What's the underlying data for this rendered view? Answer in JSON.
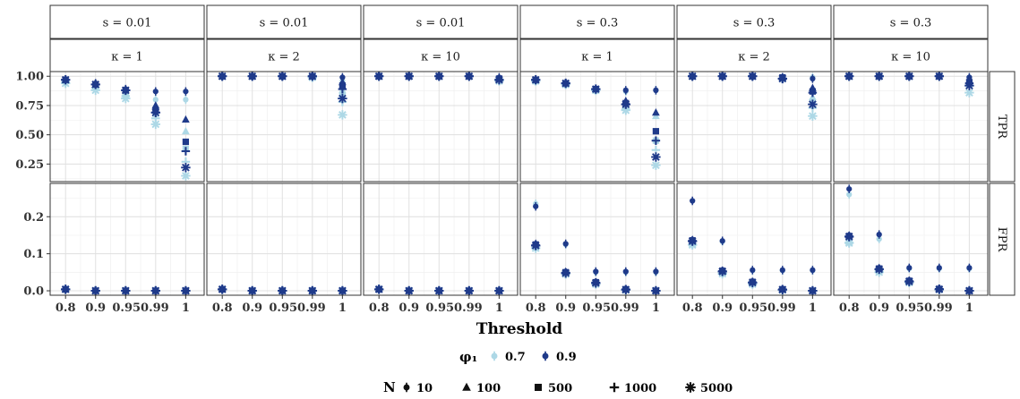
{
  "chart_data": {
    "type": "scatter",
    "xlabel": "Threshold",
    "x_categories": [
      "0.8",
      "0.9",
      "0.95",
      "0.99",
      "1"
    ],
    "x_tick_labels": [
      "0.8",
      "0.9",
      "0.950.99",
      "",
      "1"
    ],
    "colors": {
      "0.7": "#add8e6",
      "0.9": "#1f3a8a"
    },
    "col_strips": [
      {
        "s": "s = 0.01",
        "kappa": "κ = 1"
      },
      {
        "s": "s = 0.01",
        "kappa": "κ = 2"
      },
      {
        "s": "s = 0.01",
        "kappa": "κ = 10"
      },
      {
        "s": "s = 0.3",
        "kappa": "κ = 1"
      },
      {
        "s": "s = 0.3",
        "kappa": "κ = 2"
      },
      {
        "s": "s = 0.3",
        "kappa": "κ = 10"
      }
    ],
    "rows": [
      {
        "name": "TPR",
        "ylim": [
          0.1,
          1.04
        ],
        "yticks": [
          0.25,
          0.5,
          0.75,
          1.0
        ],
        "ytick_labels": [
          "0.25",
          "0.50",
          "0.75",
          "1.00"
        ]
      },
      {
        "name": "FPR",
        "ylim": [
          -0.012,
          0.29
        ],
        "yticks": [
          0.0,
          0.1,
          0.2
        ],
        "ytick_labels": [
          "0.0",
          "0.1",
          "0.2"
        ]
      }
    ],
    "legend_phi": {
      "title": "φ₁",
      "items": [
        "0.7",
        "0.9"
      ]
    },
    "legend_N": {
      "title": "N",
      "items": [
        "10",
        "100",
        "500",
        "1000",
        "5000"
      ]
    },
    "panels": [
      {
        "TPR": {
          "0.7": {
            "10": [
              0.97,
              0.93,
              0.88,
              0.8,
              0.8
            ],
            "100": [
              0.96,
              0.92,
              0.86,
              0.75,
              0.53
            ],
            "500": [
              0.96,
              0.91,
              0.84,
              0.68,
              0.38
            ],
            "1000": [
              0.95,
              0.9,
              0.83,
              0.64,
              0.27
            ],
            "5000": [
              0.94,
              0.88,
              0.81,
              0.59,
              0.15
            ]
          },
          "0.9": {
            "10": [
              0.97,
              0.94,
              0.89,
              0.87,
              0.87
            ],
            "100": [
              0.97,
              0.93,
              0.88,
              0.75,
              0.63
            ],
            "500": [
              0.97,
              0.93,
              0.88,
              0.71,
              0.44
            ],
            "1000": [
              0.97,
              0.93,
              0.88,
              0.69,
              0.36
            ],
            "5000": [
              0.97,
              0.93,
              0.88,
              0.69,
              0.22
            ]
          }
        },
        "FPR": {
          "0.7": {
            "10": [
              0.005,
              0,
              0,
              0,
              0
            ],
            "100": [
              0.005,
              0,
              0,
              0,
              0
            ],
            "500": [
              0.004,
              0,
              0,
              0,
              0
            ],
            "1000": [
              0.004,
              0,
              0,
              0,
              0
            ],
            "5000": [
              0.004,
              0,
              0,
              0,
              0
            ]
          },
          "0.9": {
            "10": [
              0.005,
              0,
              0,
              0,
              0
            ],
            "100": [
              0.005,
              0,
              0,
              0,
              0
            ],
            "500": [
              0.004,
              0,
              0,
              0,
              0
            ],
            "1000": [
              0.004,
              0,
              0,
              0,
              0
            ],
            "5000": [
              0.004,
              0,
              0,
              0,
              0
            ]
          }
        }
      },
      {
        "TPR": {
          "0.7": {
            "10": [
              1,
              1,
              1,
              1,
              0.96
            ],
            "100": [
              1,
              1,
              1,
              1,
              0.88
            ],
            "500": [
              1,
              1,
              1,
              1,
              0.84
            ],
            "1000": [
              1,
              1,
              1,
              0.99,
              0.78
            ],
            "5000": [
              1,
              1,
              1,
              0.99,
              0.67
            ]
          },
          "0.9": {
            "10": [
              1,
              1,
              1,
              1,
              0.99
            ],
            "100": [
              1,
              1,
              1,
              1,
              0.95
            ],
            "500": [
              1,
              1,
              1,
              1,
              0.92
            ],
            "1000": [
              1,
              1,
              1,
              1,
              0.89
            ],
            "5000": [
              1,
              1,
              1,
              1,
              0.81
            ]
          }
        },
        "FPR": {
          "0.7": {
            "10": [
              0.005,
              0,
              0,
              0,
              0
            ],
            "100": [
              0.005,
              0,
              0,
              0,
              0
            ],
            "500": [
              0.004,
              0,
              0,
              0,
              0
            ],
            "1000": [
              0.004,
              0,
              0,
              0,
              0
            ],
            "5000": [
              0.004,
              0,
              0,
              0,
              0
            ]
          },
          "0.9": {
            "10": [
              0.005,
              0,
              0,
              0,
              0
            ],
            "100": [
              0.005,
              0,
              0,
              0,
              0
            ],
            "500": [
              0.004,
              0,
              0,
              0,
              0
            ],
            "1000": [
              0.004,
              0,
              0,
              0,
              0
            ],
            "5000": [
              0.004,
              0,
              0,
              0,
              0
            ]
          }
        }
      },
      {
        "TPR": {
          "0.7": {
            "10": [
              1,
              1,
              1,
              1,
              0.98
            ],
            "100": [
              1,
              1,
              1,
              1,
              0.98
            ],
            "500": [
              1,
              1,
              1,
              1,
              0.97
            ],
            "1000": [
              1,
              1,
              1,
              1,
              0.97
            ],
            "5000": [
              1,
              1,
              1,
              1,
              0.96
            ]
          },
          "0.9": {
            "10": [
              1,
              1,
              1,
              1,
              0.99
            ],
            "100": [
              1,
              1,
              1,
              1,
              0.98
            ],
            "500": [
              1,
              1,
              1,
              1,
              0.98
            ],
            "1000": [
              1,
              1,
              1,
              1,
              0.97
            ],
            "5000": [
              1,
              1,
              1,
              1,
              0.97
            ]
          }
        },
        "FPR": {
          "0.7": {
            "10": [
              0.005,
              0,
              0,
              0,
              0
            ],
            "100": [
              0.005,
              0,
              0,
              0,
              0
            ],
            "500": [
              0.004,
              0,
              0,
              0,
              0
            ],
            "1000": [
              0.004,
              0,
              0,
              0,
              0
            ],
            "5000": [
              0.004,
              0,
              0,
              0,
              0
            ]
          },
          "0.9": {
            "10": [
              0.005,
              0,
              0,
              0,
              0
            ],
            "100": [
              0.005,
              0,
              0,
              0,
              0
            ],
            "500": [
              0.004,
              0,
              0,
              0,
              0
            ],
            "1000": [
              0.004,
              0,
              0,
              0,
              0
            ],
            "5000": [
              0.004,
              0,
              0,
              0,
              0
            ]
          }
        }
      },
      {
        "TPR": {
          "0.7": {
            "10": [
              0.97,
              0.94,
              0.89,
              0.87,
              0.88
            ],
            "100": [
              0.97,
              0.93,
              0.88,
              0.75,
              0.66
            ],
            "500": [
              0.96,
              0.93,
              0.88,
              0.73,
              0.45
            ],
            "1000": [
              0.96,
              0.93,
              0.88,
              0.72,
              0.37
            ],
            "5000": [
              0.96,
              0.93,
              0.88,
              0.71,
              0.24
            ]
          },
          "0.9": {
            "10": [
              0.97,
              0.94,
              0.89,
              0.88,
              0.88
            ],
            "100": [
              0.97,
              0.94,
              0.89,
              0.79,
              0.69
            ],
            "500": [
              0.97,
              0.94,
              0.89,
              0.77,
              0.53
            ],
            "1000": [
              0.97,
              0.94,
              0.89,
              0.76,
              0.45
            ],
            "5000": [
              0.97,
              0.94,
              0.89,
              0.76,
              0.31
            ]
          }
        },
        "FPR": {
          "0.7": {
            "10": [
              0.235,
              0.125,
              0.05,
              0.05,
              0.05
            ],
            "100": [
              0.12,
              0.05,
              0.022,
              0.004,
              0
            ],
            "500": [
              0.118,
              0.048,
              0.02,
              0.003,
              0
            ],
            "1000": [
              0.116,
              0.046,
              0.019,
              0.003,
              0
            ],
            "5000": [
              0.115,
              0.045,
              0.018,
              0.002,
              0
            ]
          },
          "0.9": {
            "10": [
              0.228,
              0.127,
              0.052,
              0.052,
              0.052
            ],
            "100": [
              0.128,
              0.052,
              0.024,
              0.005,
              0.001
            ],
            "500": [
              0.125,
              0.05,
              0.023,
              0.004,
              0
            ],
            "1000": [
              0.123,
              0.049,
              0.022,
              0.004,
              0
            ],
            "5000": [
              0.122,
              0.048,
              0.021,
              0.003,
              0
            ]
          }
        }
      },
      {
        "TPR": {
          "0.7": {
            "10": [
              1,
              1,
              1,
              0.99,
              0.99
            ],
            "100": [
              1,
              1,
              1,
              0.98,
              0.82
            ],
            "500": [
              1,
              1,
              1,
              0.98,
              0.78
            ],
            "1000": [
              1,
              1,
              1,
              0.98,
              0.73
            ],
            "5000": [
              1,
              1,
              1,
              0.98,
              0.66
            ]
          },
          "0.9": {
            "10": [
              1,
              1,
              1,
              0.99,
              0.98
            ],
            "100": [
              1,
              1,
              1,
              0.99,
              0.9
            ],
            "500": [
              1,
              1,
              1,
              0.99,
              0.87
            ],
            "1000": [
              1,
              1,
              1,
              0.98,
              0.86
            ],
            "5000": [
              1,
              1,
              1,
              0.98,
              0.76
            ]
          }
        },
        "FPR": {
          "0.7": {
            "10": [
              0.135,
              0.133,
              0.055,
              0.055,
              0.055
            ],
            "100": [
              0.128,
              0.05,
              0.022,
              0.004,
              0
            ],
            "500": [
              0.126,
              0.048,
              0.02,
              0.003,
              0
            ],
            "1000": [
              0.125,
              0.047,
              0.019,
              0.003,
              0
            ],
            "5000": [
              0.124,
              0.046,
              0.018,
              0.002,
              0
            ]
          },
          "0.9": {
            "10": [
              0.243,
              0.135,
              0.056,
              0.056,
              0.056
            ],
            "100": [
              0.138,
              0.055,
              0.025,
              0.005,
              0.001
            ],
            "500": [
              0.136,
              0.054,
              0.024,
              0.004,
              0
            ],
            "1000": [
              0.135,
              0.053,
              0.023,
              0.004,
              0
            ],
            "5000": [
              0.134,
              0.052,
              0.022,
              0.003,
              0
            ]
          }
        }
      },
      {
        "TPR": {
          "0.7": {
            "10": [
              1,
              1,
              1,
              1,
              0.99
            ],
            "100": [
              1,
              1,
              1,
              1,
              0.95
            ],
            "500": [
              1,
              1,
              1,
              1,
              0.93
            ],
            "1000": [
              1,
              1,
              1,
              1,
              0.92
            ],
            "5000": [
              1,
              1,
              1,
              1,
              0.86
            ]
          },
          "0.9": {
            "10": [
              1,
              1,
              1,
              1,
              0.99
            ],
            "100": [
              1,
              1,
              1,
              1,
              0.96
            ],
            "500": [
              1,
              1,
              1,
              1,
              0.95
            ],
            "1000": [
              1,
              1,
              1,
              1,
              0.94
            ],
            "5000": [
              1,
              1,
              1,
              1,
              0.92
            ]
          }
        },
        "FPR": {
          "0.7": {
            "10": [
              0.26,
              0.14,
              0.06,
              0.06,
              0.06
            ],
            "100": [
              0.133,
              0.055,
              0.025,
              0.005,
              0
            ],
            "500": [
              0.131,
              0.053,
              0.024,
              0.004,
              0
            ],
            "1000": [
              0.13,
              0.052,
              0.023,
              0.004,
              0
            ],
            "5000": [
              0.129,
              0.05,
              0.022,
              0.003,
              0
            ]
          },
          "0.9": {
            "10": [
              0.275,
              0.152,
              0.062,
              0.062,
              0.062
            ],
            "100": [
              0.15,
              0.062,
              0.028,
              0.006,
              0.001
            ],
            "500": [
              0.148,
              0.06,
              0.027,
              0.005,
              0
            ],
            "1000": [
              0.147,
              0.059,
              0.026,
              0.005,
              0
            ],
            "5000": [
              0.146,
              0.058,
              0.025,
              0.004,
              0
            ]
          }
        }
      }
    ]
  }
}
